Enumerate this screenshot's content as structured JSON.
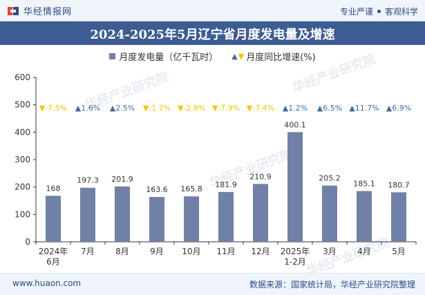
{
  "header": {
    "brand": "华经情报网",
    "tags": [
      "专业严谨",
      "客观科学"
    ]
  },
  "title": "2024-2025年5月辽宁省月度发电量及增速",
  "legend": {
    "bar_label": "月度发电量（亿千瓦时）",
    "growth_label": "月度同比增速(%)"
  },
  "watermark": "华经产业研究院",
  "footer": {
    "site": "www.huaon.com",
    "source": "数据来源：国家统计局，华经产业研究院整理"
  },
  "colors": {
    "bar": "#7080a6",
    "up": "#3f6ea0",
    "down": "#f5c400",
    "title_bg": "#3d5c93"
  },
  "chart_data": {
    "type": "bar",
    "title": "2024-2025年5月辽宁省月度发电量及增速",
    "categories": [
      "2024年\n6月",
      "7月",
      "8月",
      "9月",
      "10月",
      "11月",
      "12月",
      "2025年\n1-2月",
      "3月",
      "4月",
      "5月"
    ],
    "series": [
      {
        "name": "月度发电量（亿千瓦时）",
        "values": [
          168,
          197.3,
          201.9,
          163.6,
          165.8,
          181.9,
          210.9,
          400.1,
          205.2,
          185.1,
          180.7
        ]
      }
    ],
    "growth": {
      "name": "月度同比增速(%)",
      "values": [
        -7.5,
        1.6,
        2.5,
        -1.7,
        -2.9,
        -7.9,
        -7.4,
        1.2,
        6.5,
        11.7,
        6.9
      ]
    },
    "ylim": [
      0,
      600
    ],
    "yticks": [
      0,
      100,
      200,
      300,
      400,
      500,
      600
    ],
    "grid": false,
    "legend_position": "top"
  }
}
